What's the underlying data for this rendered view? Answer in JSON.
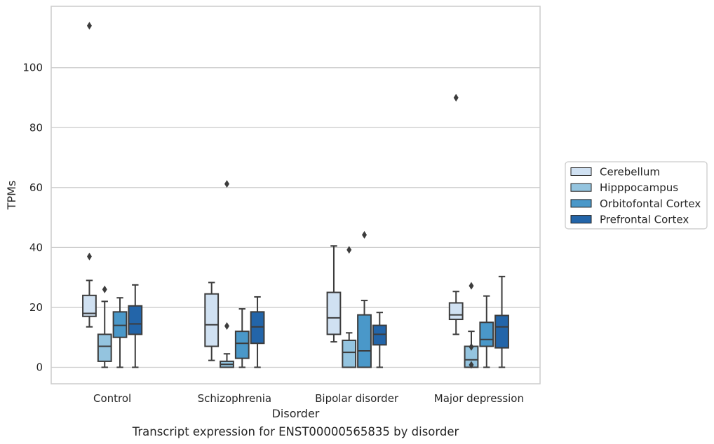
{
  "chart_data": {
    "type": "box",
    "title": "",
    "caption": "Transcript expression for ENST00000565835 by disorder",
    "xlabel": "Disorder",
    "ylabel": "TPMs",
    "ylim": [
      -5.5,
      120.5
    ],
    "yticks": [
      0,
      20,
      40,
      60,
      80,
      100
    ],
    "grid": "horizontal",
    "legend_position": "right",
    "categories": [
      "Control",
      "Schizophrenia",
      "Bipolar disorder",
      "Major depression"
    ],
    "series": [
      {
        "name": "Cerebellum",
        "color": "#d0e1f2",
        "boxes": [
          {
            "whislo": 13.5,
            "q1": 17,
            "med": 18,
            "q3": 24,
            "whishi": 29,
            "fliers": [
              37,
              114
            ]
          },
          {
            "whislo": 2.3,
            "q1": 7,
            "med": 14.2,
            "q3": 24.5,
            "whishi": 28.3,
            "fliers": []
          },
          {
            "whislo": 8.5,
            "q1": 11,
            "med": 16.5,
            "q3": 25,
            "whishi": 40.5,
            "fliers": []
          },
          {
            "whislo": 11,
            "q1": 16,
            "med": 17.5,
            "q3": 21.5,
            "whishi": 25.3,
            "fliers": [
              90
            ]
          }
        ]
      },
      {
        "name": "Hipppocampus",
        "color": "#94c4df",
        "boxes": [
          {
            "whislo": 0,
            "q1": 2,
            "med": 7,
            "q3": 11,
            "whishi": 22,
            "fliers": [
              26
            ]
          },
          {
            "whislo": 0,
            "q1": 0,
            "med": 1,
            "q3": 2,
            "whishi": 4.5,
            "fliers": [
              13.8,
              61.2
            ]
          },
          {
            "whislo": 0,
            "q1": 0,
            "med": 5,
            "q3": 9,
            "whishi": 11.5,
            "fliers": [
              39.2
            ]
          },
          {
            "whislo": 0,
            "q1": 0,
            "med": 2.5,
            "q3": 7,
            "whishi": 12,
            "fliers": [
              0.8,
              6.8,
              27.2
            ]
          }
        ]
      },
      {
        "name": "Orbitofontal Cortex",
        "color": "#4a98c9",
        "boxes": [
          {
            "whislo": 0,
            "q1": 10,
            "med": 14,
            "q3": 18.5,
            "whishi": 23.2,
            "fliers": []
          },
          {
            "whislo": 0,
            "q1": 3,
            "med": 8,
            "q3": 12,
            "whishi": 19.5,
            "fliers": []
          },
          {
            "whislo": 0,
            "q1": 0,
            "med": 5.5,
            "q3": 17.5,
            "whishi": 22.3,
            "fliers": [
              44.2
            ]
          },
          {
            "whislo": 0,
            "q1": 7,
            "med": 9.3,
            "q3": 15,
            "whishi": 23.8,
            "fliers": []
          }
        ]
      },
      {
        "name": "Prefrontal Cortex",
        "color": "#2365a9",
        "boxes": [
          {
            "whislo": 0,
            "q1": 11,
            "med": 14.5,
            "q3": 20.5,
            "whishi": 27.5,
            "fliers": []
          },
          {
            "whislo": 0,
            "q1": 8,
            "med": 13.5,
            "q3": 18.5,
            "whishi": 23.5,
            "fliers": []
          },
          {
            "whislo": 0,
            "q1": 7.5,
            "med": 11,
            "q3": 14,
            "whishi": 18.3,
            "fliers": []
          },
          {
            "whislo": 0,
            "q1": 6.5,
            "med": 13.5,
            "q3": 17.3,
            "whishi": 30.3,
            "fliers": []
          }
        ]
      }
    ]
  }
}
